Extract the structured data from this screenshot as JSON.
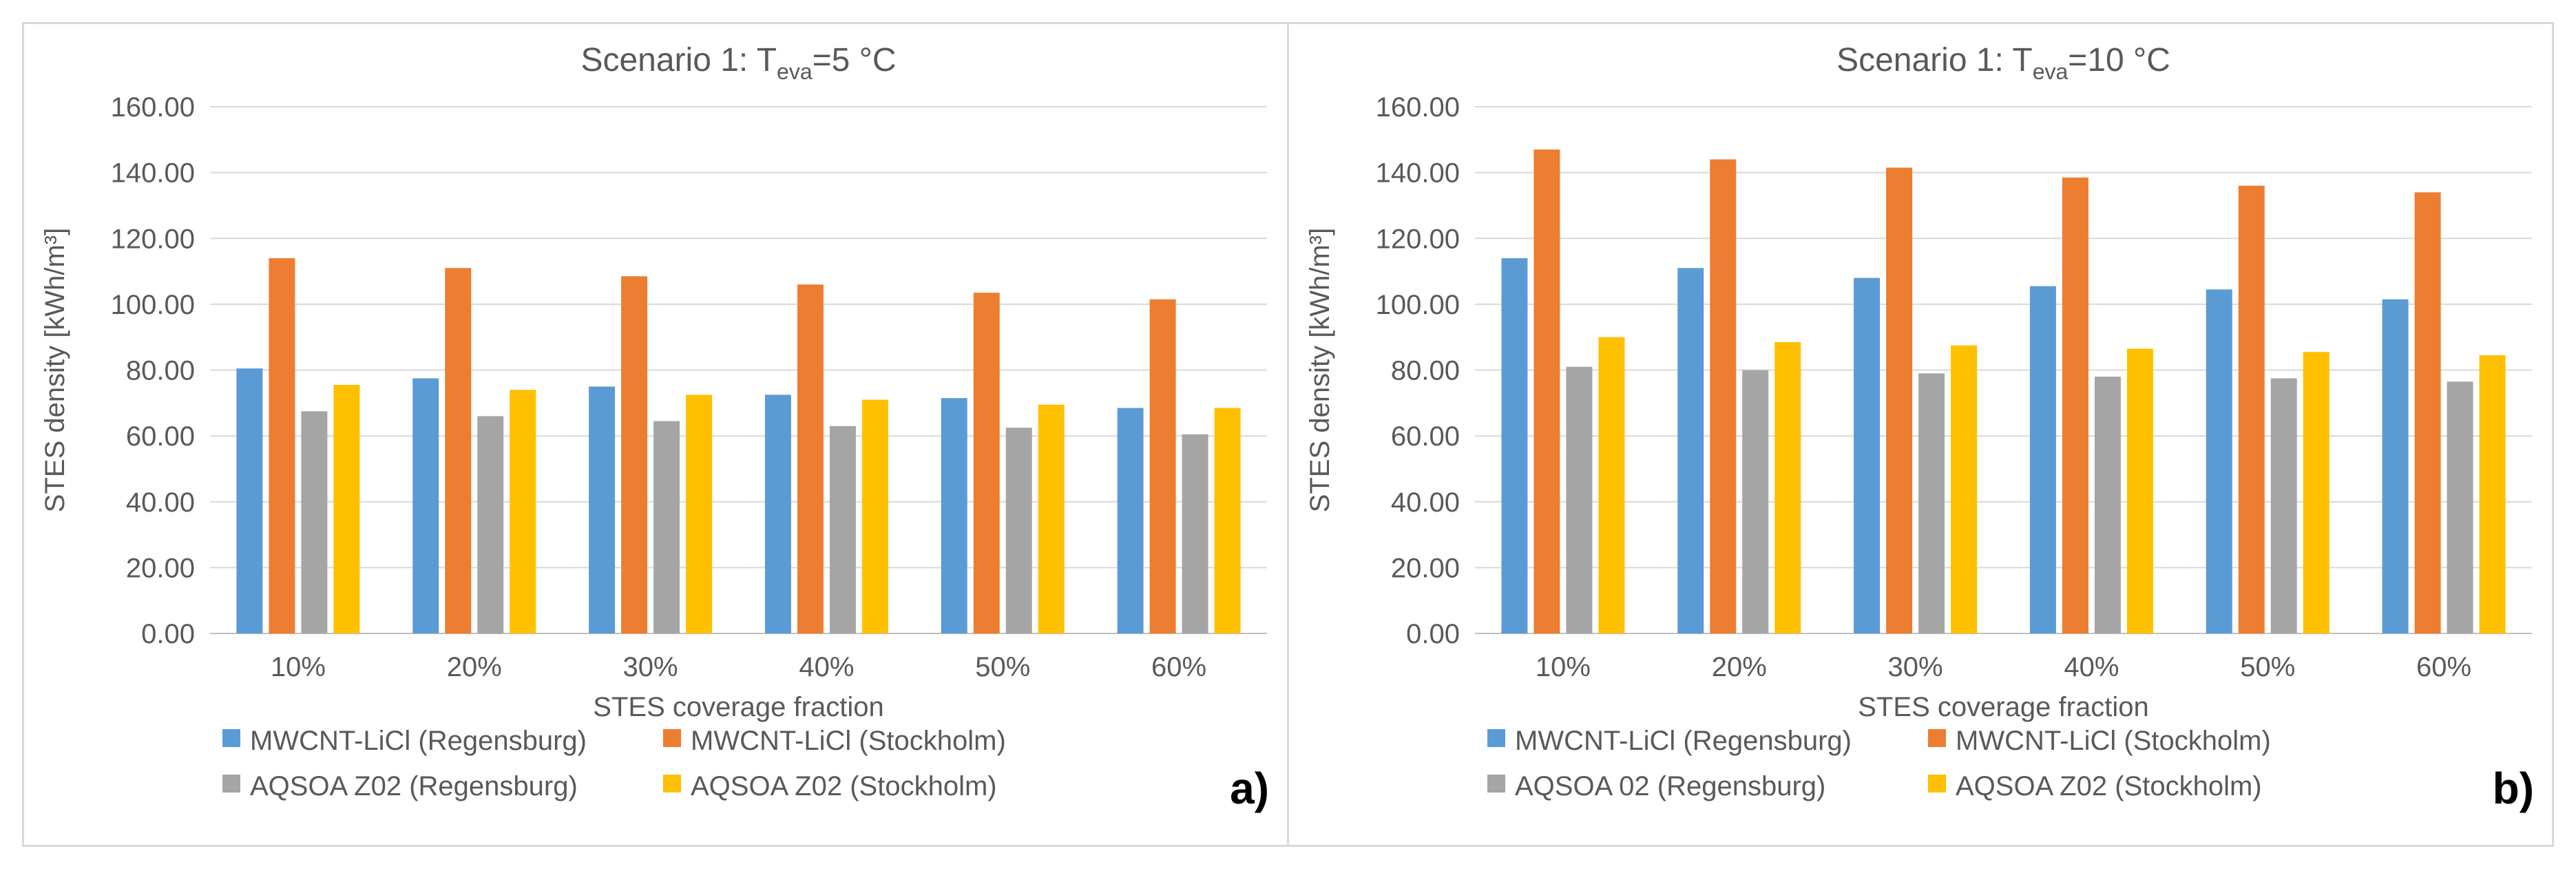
{
  "chart_data": [
    {
      "type": "bar",
      "panel_label": "a)",
      "title": {
        "prefix": "Scenario 1: T",
        "subscript": "eva",
        "suffix": "=5 °C"
      },
      "xlabel": "STES coverage fraction",
      "ylabel": "STES density [kWh/m³]",
      "categories": [
        "10%",
        "20%",
        "30%",
        "40%",
        "50%",
        "60%"
      ],
      "ylim": [
        0,
        160
      ],
      "yticks": [
        "0.00",
        "20.00",
        "40.00",
        "60.00",
        "80.00",
        "100.00",
        "120.00",
        "140.00",
        "160.00"
      ],
      "legend_position": "bottom",
      "series": [
        {
          "name": "MWCNT-LiCl (Regensburg)",
          "color": "#5b9bd5",
          "values": [
            80.5,
            77.5,
            75.0,
            72.5,
            71.5,
            68.5
          ]
        },
        {
          "name": "MWCNT-LiCl (Stockholm)",
          "color": "#ed7d31",
          "values": [
            114.0,
            111.0,
            108.5,
            106.0,
            103.5,
            101.5
          ]
        },
        {
          "name": "AQSOA Z02 (Regensburg)",
          "color": "#a5a5a5",
          "values": [
            67.5,
            66.0,
            64.5,
            63.0,
            62.5,
            60.5
          ]
        },
        {
          "name": "AQSOA Z02 (Stockholm)",
          "color": "#ffc000",
          "values": [
            75.5,
            74.0,
            72.5,
            71.0,
            69.5,
            68.5
          ]
        }
      ]
    },
    {
      "type": "bar",
      "panel_label": "b)",
      "title": {
        "prefix": "Scenario 1: T",
        "subscript": "eva",
        "suffix": "=10 °C"
      },
      "xlabel": "STES coverage fraction",
      "ylabel": "STES density [kWh/m³]",
      "categories": [
        "10%",
        "20%",
        "30%",
        "40%",
        "50%",
        "60%"
      ],
      "ylim": [
        0,
        160
      ],
      "yticks": [
        "0.00",
        "20.00",
        "40.00",
        "60.00",
        "80.00",
        "100.00",
        "120.00",
        "140.00",
        "160.00"
      ],
      "legend_position": "bottom",
      "series": [
        {
          "name": "MWCNT-LiCl (Regensburg)",
          "color": "#5b9bd5",
          "values": [
            114.0,
            111.0,
            108.0,
            105.5,
            104.5,
            101.5
          ]
        },
        {
          "name": "MWCNT-LiCl (Stockholm)",
          "color": "#ed7d31",
          "values": [
            147.0,
            144.0,
            141.5,
            138.5,
            136.0,
            134.0
          ]
        },
        {
          "name": "AQSOA 02 (Regensburg)",
          "color": "#a5a5a5",
          "values": [
            81.0,
            80.0,
            79.0,
            78.0,
            77.5,
            76.5
          ]
        },
        {
          "name": "AQSOA Z02 (Stockholm)",
          "color": "#ffc000",
          "values": [
            90.0,
            88.5,
            87.5,
            86.5,
            85.5,
            84.5
          ]
        }
      ]
    }
  ]
}
